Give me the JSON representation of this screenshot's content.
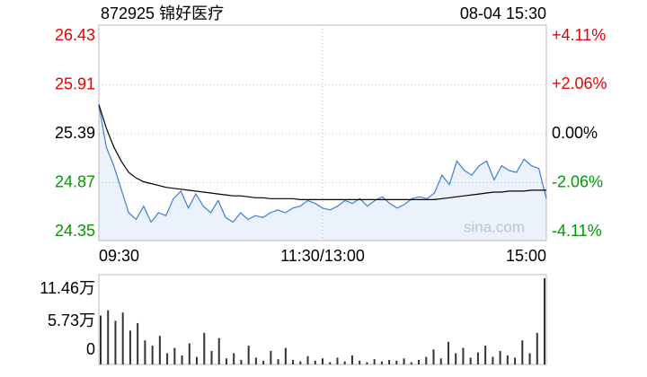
{
  "chart_data": [
    {
      "type": "line",
      "title": "872925 锦好医疗",
      "timestamp": "08-04 15:30",
      "watermark": "sina.com",
      "x": [
        0,
        4,
        8,
        12,
        16,
        20,
        24,
        28,
        32,
        36,
        40,
        44,
        48,
        52,
        56,
        60,
        64,
        68,
        72,
        76,
        80,
        84,
        88,
        92,
        96,
        100,
        104,
        108,
        112,
        116,
        120,
        124,
        128,
        132,
        136,
        140,
        144,
        148,
        152,
        156,
        160,
        164,
        168,
        172,
        176,
        180,
        184,
        188,
        192,
        196,
        200,
        204,
        208,
        212,
        216,
        220,
        224,
        228,
        232,
        236,
        240
      ],
      "xlim": [
        0,
        240
      ],
      "xticks": [
        {
          "value": 0,
          "label": "09:30"
        },
        {
          "value": 120,
          "label": "11:30/13:00"
        },
        {
          "value": 240,
          "label": "15:00"
        }
      ],
      "ylim": [
        24.35,
        26.43
      ],
      "yticks": [
        26.43,
        25.91,
        25.39,
        24.87,
        24.35
      ],
      "y2lim": [
        -4.11,
        4.11
      ],
      "y2ticks": [
        {
          "value": 4.11,
          "label": "+4.11%"
        },
        {
          "value": 2.06,
          "label": "+2.06%"
        },
        {
          "value": 0,
          "label": "0.00%"
        },
        {
          "value": -2.06,
          "label": "-2.06%"
        },
        {
          "value": -4.11,
          "label": "-4.11%"
        }
      ],
      "up_color": "#e60000",
      "down_color": "#009900",
      "flat_color": "#000000",
      "grid": true,
      "series": [
        {
          "name": "price",
          "color": "#3d7fd9",
          "values": [
            25.7,
            25.25,
            25.05,
            24.8,
            24.55,
            24.48,
            24.62,
            24.45,
            24.55,
            24.52,
            24.7,
            24.78,
            24.6,
            24.75,
            24.62,
            24.55,
            24.68,
            24.5,
            24.45,
            24.55,
            24.48,
            24.52,
            24.5,
            24.55,
            24.58,
            24.55,
            24.6,
            24.62,
            24.68,
            24.65,
            24.6,
            24.58,
            24.62,
            24.68,
            24.65,
            24.7,
            24.62,
            24.68,
            24.72,
            24.65,
            24.6,
            24.64,
            24.7,
            24.72,
            24.7,
            24.76,
            24.95,
            24.85,
            25.1,
            25.0,
            24.95,
            25.05,
            25.1,
            24.9,
            25.05,
            25.0,
            24.98,
            25.12,
            25.05,
            25.02,
            24.7
          ]
        },
        {
          "name": "average",
          "color": "#000000",
          "values": [
            25.7,
            25.45,
            25.25,
            25.1,
            24.98,
            24.92,
            24.88,
            24.86,
            24.84,
            24.82,
            24.81,
            24.8,
            24.79,
            24.78,
            24.77,
            24.76,
            24.75,
            24.74,
            24.73,
            24.73,
            24.72,
            24.71,
            24.71,
            24.7,
            24.7,
            24.7,
            24.7,
            24.69,
            24.69,
            24.69,
            24.69,
            24.69,
            24.69,
            24.69,
            24.69,
            24.69,
            24.69,
            24.69,
            24.69,
            24.69,
            24.69,
            24.69,
            24.69,
            24.69,
            24.69,
            24.69,
            24.7,
            24.71,
            24.72,
            24.73,
            24.74,
            24.75,
            24.76,
            24.77,
            24.77,
            24.78,
            24.78,
            24.78,
            24.79,
            24.79,
            24.79
          ]
        }
      ]
    },
    {
      "type": "bar",
      "color": "#333333",
      "x": [
        0,
        4,
        8,
        12,
        16,
        20,
        24,
        28,
        32,
        36,
        40,
        44,
        48,
        52,
        56,
        60,
        64,
        68,
        72,
        76,
        80,
        84,
        88,
        92,
        96,
        100,
        104,
        108,
        112,
        116,
        120,
        124,
        128,
        132,
        136,
        140,
        144,
        148,
        152,
        156,
        160,
        164,
        168,
        172,
        176,
        180,
        184,
        188,
        192,
        196,
        200,
        204,
        208,
        212,
        216,
        220,
        224,
        228,
        232,
        236,
        240
      ],
      "xlim": [
        0,
        240
      ],
      "ylim": [
        0,
        11.46
      ],
      "yticks": [
        {
          "value": 11.46,
          "label": "11.46万"
        },
        {
          "value": 5.73,
          "label": "5.73万"
        },
        0
      ],
      "values": [
        6.5,
        7.2,
        5.8,
        6.9,
        4.5,
        5.5,
        3.2,
        2.5,
        3.8,
        1.5,
        2.2,
        1.2,
        2.8,
        1.0,
        4.2,
        1.8,
        3.5,
        0.8,
        1.5,
        0.6,
        2.5,
        0.9,
        0.5,
        1.8,
        0.7,
        2.2,
        0.6,
        0.4,
        1.1,
        0.5,
        0.8,
        0.3,
        0.9,
        0.4,
        1.2,
        0.5,
        0.3,
        0.7,
        0.4,
        0.6,
        0.5,
        0.8,
        0.3,
        0.6,
        1.0,
        2.0,
        0.8,
        3.0,
        1.5,
        2.2,
        0.9,
        1.6,
        2.5,
        1.0,
        1.8,
        1.2,
        0.9,
        3.2,
        1.5,
        4.2,
        11.46
      ]
    }
  ]
}
